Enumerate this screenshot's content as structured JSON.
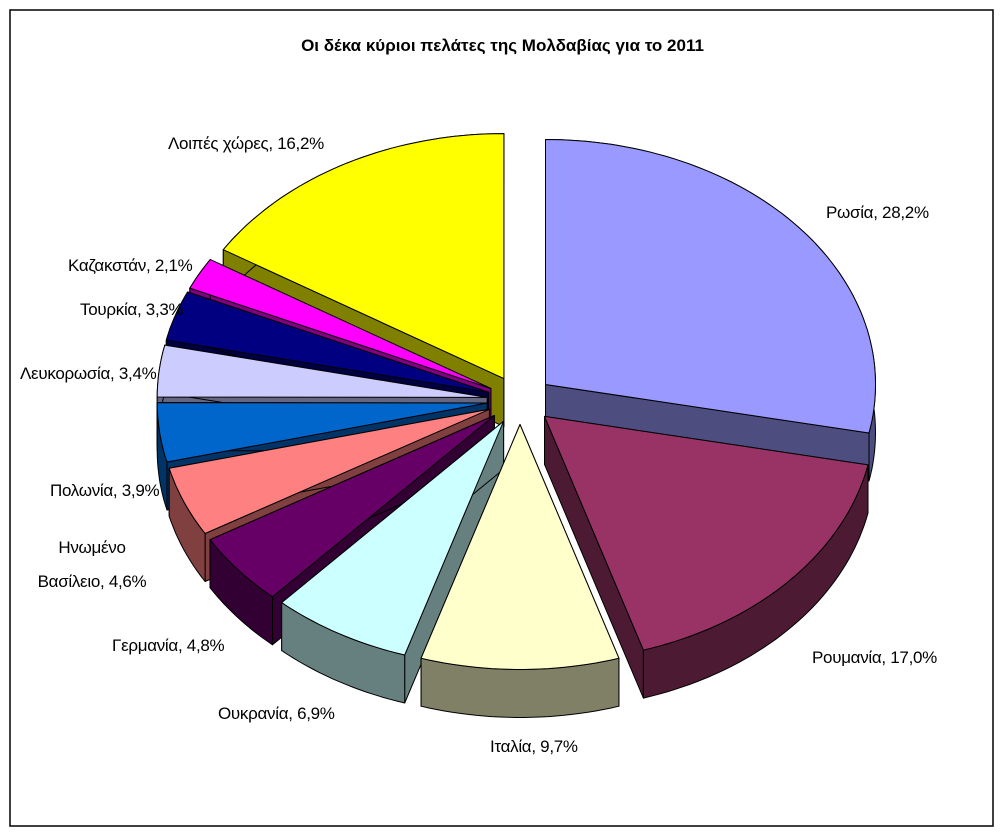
{
  "chart_data": {
    "type": "pie",
    "title": "Οι δέκα κύριοι πελάτες της Μολδαβίας για το 2011",
    "labels": [
      "Ρωσία, 28,2%",
      "Ρουμανία, 17,0%",
      "Ιταλία, 9,7%",
      "Ουκρανία, 6,9%",
      "Γερμανία, 4,8%",
      "Ηνωμένο Βασίλειο, 4,6%",
      "Πολωνία, 3,9%",
      "Λευκορωσία, 3,4%",
      "Τουρκία, 3,3%",
      "Καζακστάν, 2,1%",
      "Λοιπές χώρες, 16,2%"
    ],
    "values": [
      28.2,
      17.0,
      9.7,
      6.9,
      4.8,
      4.6,
      3.9,
      3.4,
      3.3,
      2.1,
      16.2
    ],
    "colors": [
      "#9999ff",
      "#993366",
      "#ffffcc",
      "#ccffff",
      "#660066",
      "#ff8080",
      "#0066cc",
      "#ccccff",
      "#000080",
      "#ff00ff",
      "#ffff00"
    ]
  }
}
